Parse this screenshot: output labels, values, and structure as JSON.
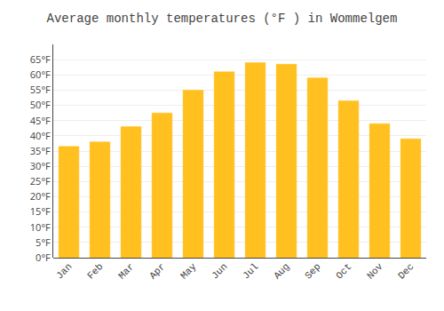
{
  "chart_data": {
    "type": "bar",
    "title": "Average monthly temperatures (°F ) in Wommelgem",
    "categories": [
      "Jan",
      "Feb",
      "Mar",
      "Apr",
      "May",
      "Jun",
      "Jul",
      "Aug",
      "Sep",
      "Oct",
      "Nov",
      "Dec"
    ],
    "values": [
      36.5,
      38.0,
      43.0,
      47.5,
      55.0,
      61.0,
      64.0,
      63.5,
      59.0,
      51.5,
      44.0,
      39.0
    ],
    "color": "#FFC020",
    "ylim": [
      0,
      70
    ],
    "yticks": [
      {
        "value": 0,
        "label": "0°F"
      },
      {
        "value": 5,
        "label": "5°F"
      },
      {
        "value": 10,
        "label": "10°F"
      },
      {
        "value": 15,
        "label": "15°F"
      },
      {
        "value": 20,
        "label": "20°F"
      },
      {
        "value": 25,
        "label": "25°F"
      },
      {
        "value": 30,
        "label": "30°F"
      },
      {
        "value": 35,
        "label": "35°F"
      },
      {
        "value": 40,
        "label": "40°F"
      },
      {
        "value": 45,
        "label": "45°F"
      },
      {
        "value": 50,
        "label": "50°F"
      },
      {
        "value": 55,
        "label": "55°F"
      },
      {
        "value": 60,
        "label": "60°F"
      },
      {
        "value": 65,
        "label": "65°F"
      }
    ],
    "grid": true
  }
}
